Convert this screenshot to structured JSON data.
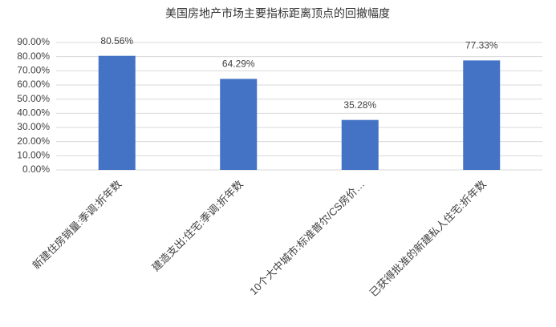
{
  "chart_data": {
    "type": "bar",
    "title": "美国房地产市场主要指标距离顶点的回撤幅度",
    "categories": [
      "新建住房销量:季调:折年数",
      "建造支出:住宅:季调:折年数",
      "10个大中城市:标准普尔/CS房价…",
      "已获得批准的新建私人住宅:折年数"
    ],
    "values": [
      80.56,
      64.29,
      35.28,
      77.33
    ],
    "value_labels": [
      "80.56%",
      "64.29%",
      "35.28%",
      "77.33%"
    ],
    "color": "#4472c4",
    "ylim": [
      0,
      90
    ],
    "yticks": [
      {
        "value": 0,
        "label": "0.00%"
      },
      {
        "value": 10,
        "label": "10.00%"
      },
      {
        "value": 20,
        "label": "20.00%"
      },
      {
        "value": 30,
        "label": "30.00%"
      },
      {
        "value": 40,
        "label": "40.00%"
      },
      {
        "value": 50,
        "label": "50.00%"
      },
      {
        "value": 60,
        "label": "60.00%"
      },
      {
        "value": 70,
        "label": "70.00%"
      },
      {
        "value": 80,
        "label": "80.00%"
      },
      {
        "value": 90,
        "label": "90.00%"
      }
    ],
    "grid": true
  }
}
